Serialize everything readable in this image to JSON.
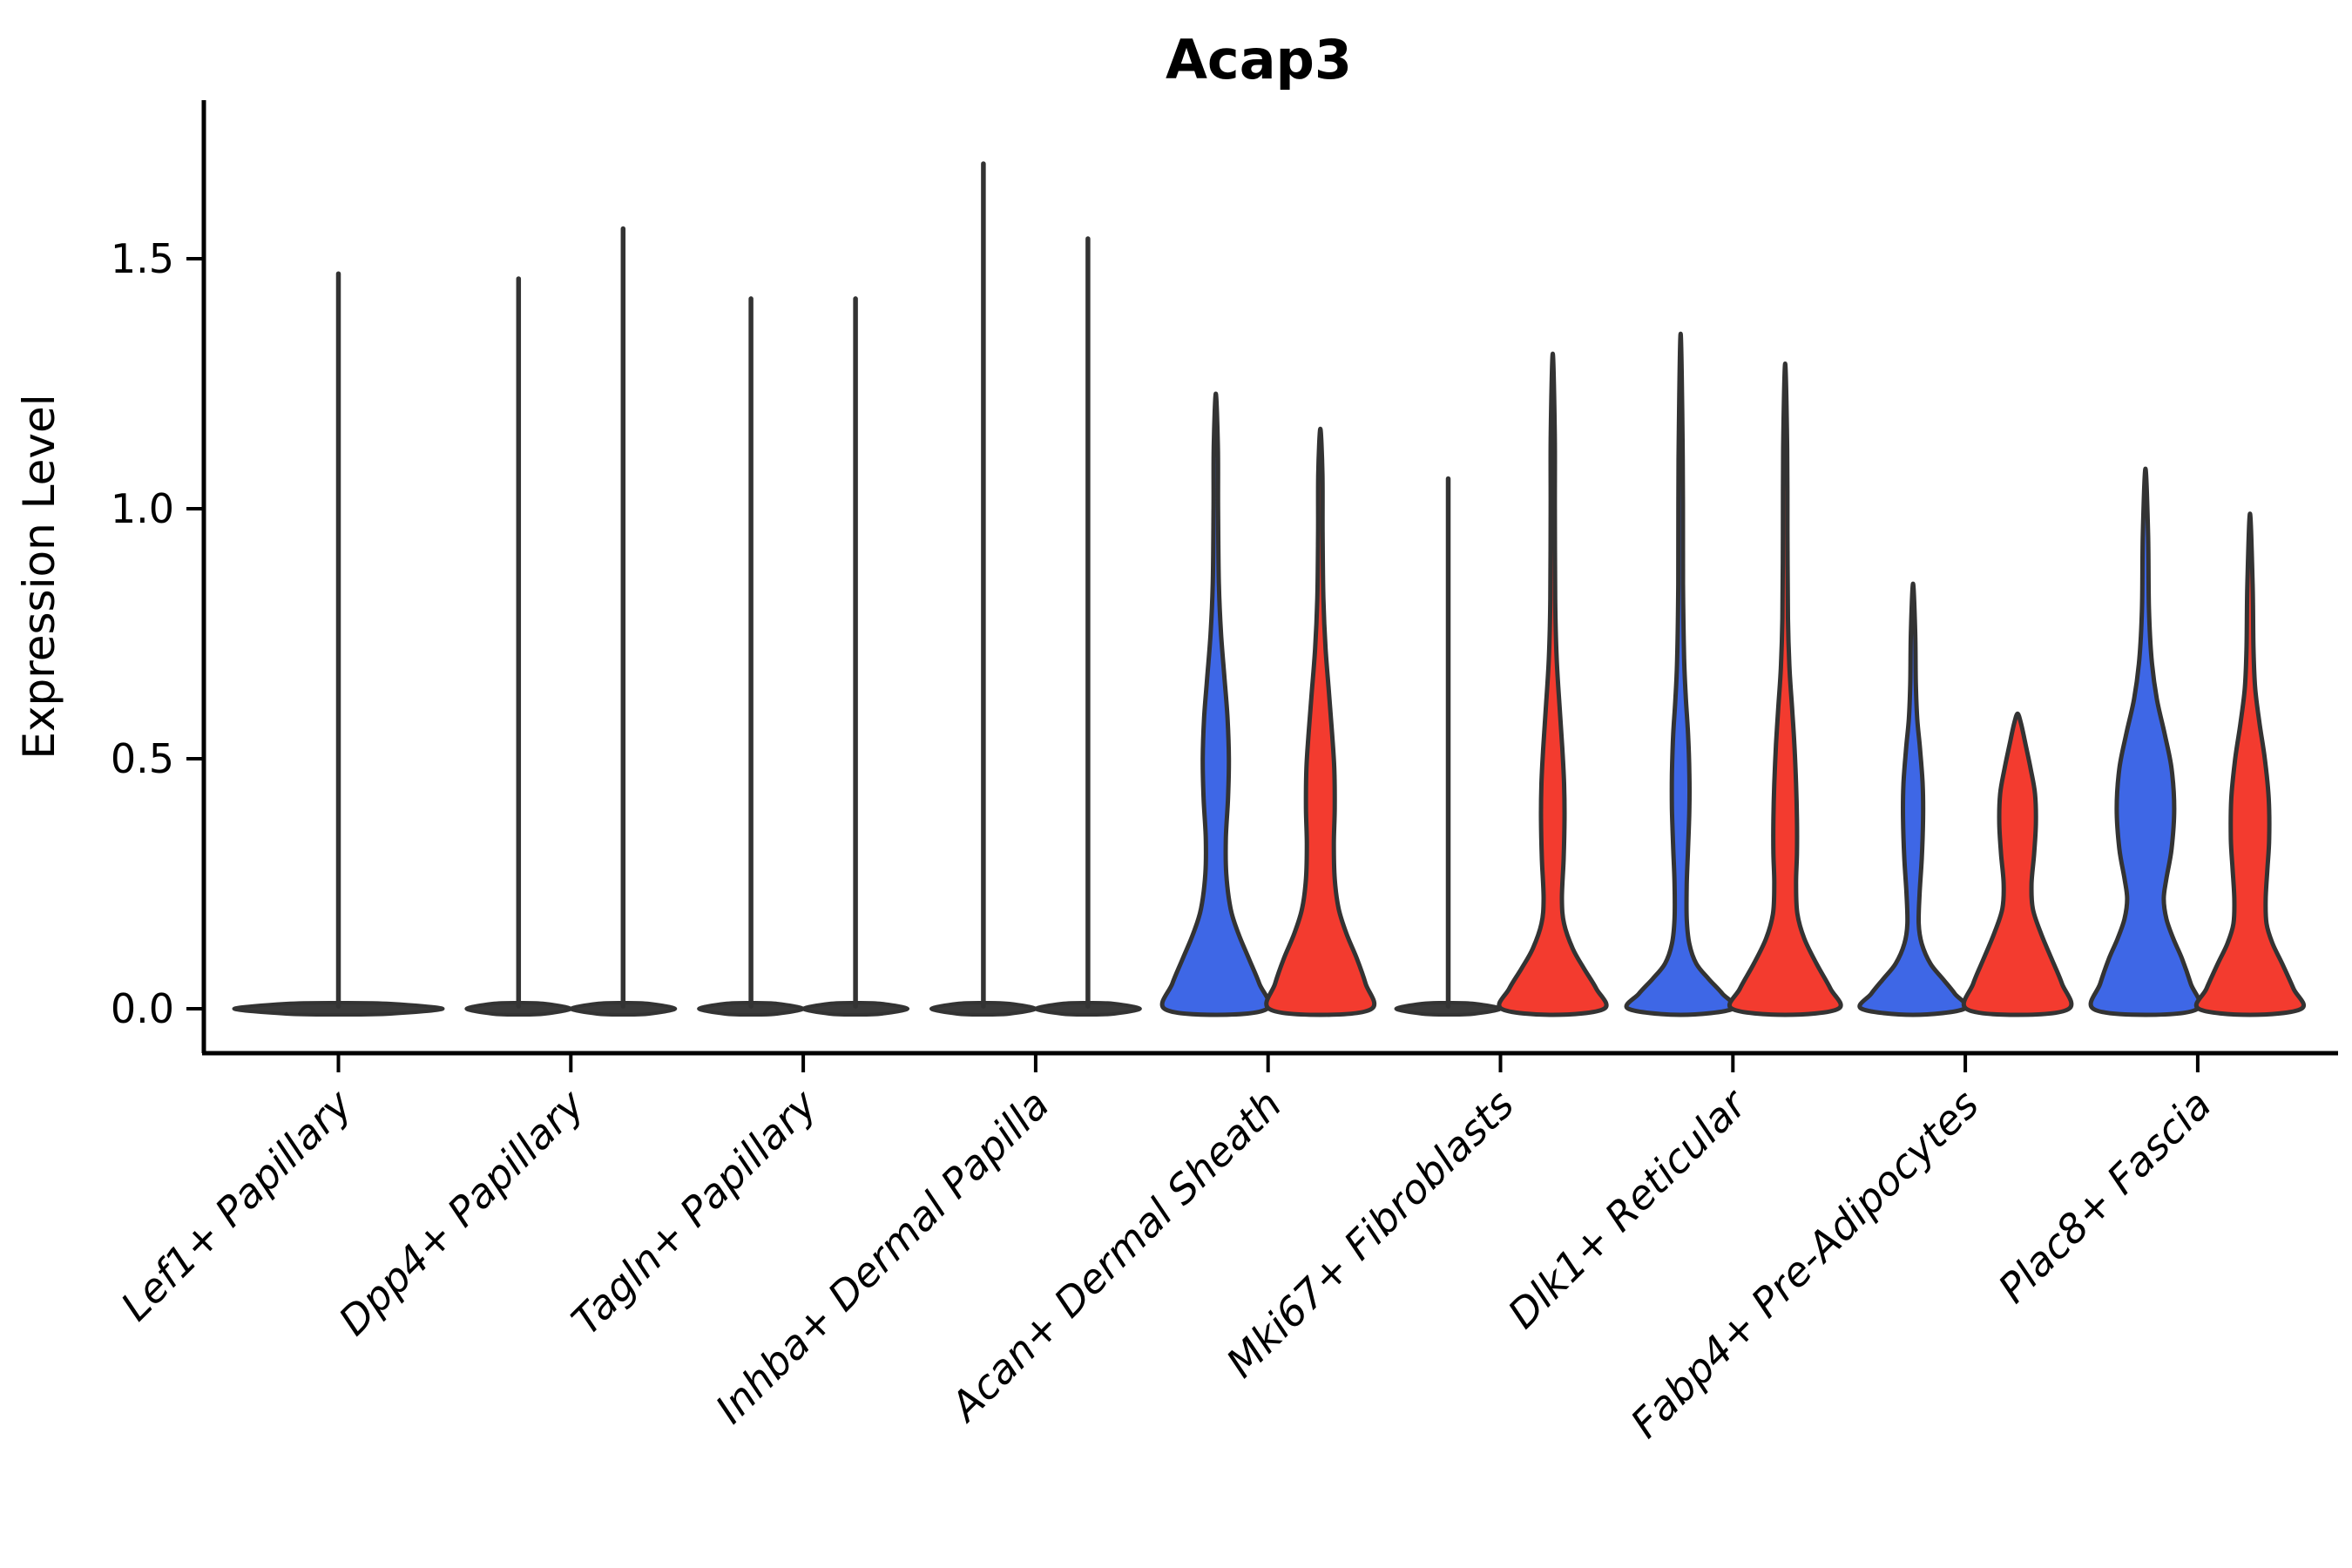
{
  "chart_data": {
    "type": "violin",
    "title": "Acap3",
    "ylabel": "Expression Level",
    "yticks": [
      0.0,
      0.5,
      1.0,
      1.5
    ],
    "ylim": [
      -0.09,
      1.82
    ],
    "grid": false,
    "legend": "none",
    "categories": [
      "Lef1+ Papillary",
      "Dpp4+ Papillary",
      "Tagln+ Papillary",
      "Inhba+ Dermal Papilla",
      "Acan+ Dermal Sheath",
      "Mki67+ Fibroblasts",
      "Dlk1+ Reticular",
      "Fabp4+ Pre-Adipocytes",
      "Plac8+ Fascia"
    ],
    "colors": {
      "blue_group": "#3E67E6",
      "red_group": "#F33B2F",
      "outline": "#333333",
      "flat_violin_fill": "#3A3A3A"
    },
    "series_note": "each category shows a left (blue) and right (red) violin; flat-spike violins are near-zero distributions with a single thin max spike",
    "violins": [
      {
        "category_index": 0,
        "group": "single",
        "style": "flat-spike",
        "offset": 0,
        "base_halfwidth": 120,
        "max_value": 1.47
      },
      {
        "category_index": 1,
        "group": "blue",
        "style": "flat-spike",
        "offset": -60,
        "base_halfwidth": 60,
        "max_value": 1.46
      },
      {
        "category_index": 1,
        "group": "red",
        "style": "flat-spike",
        "offset": 60,
        "base_halfwidth": 60,
        "max_value": 1.56
      },
      {
        "category_index": 2,
        "group": "blue",
        "style": "flat-spike",
        "offset": -60,
        "base_halfwidth": 60,
        "max_value": 1.42
      },
      {
        "category_index": 2,
        "group": "red",
        "style": "flat-spike",
        "offset": 60,
        "base_halfwidth": 60,
        "max_value": 1.42
      },
      {
        "category_index": 3,
        "group": "blue",
        "style": "flat-spike",
        "offset": -60,
        "base_halfwidth": 60,
        "max_value": 1.69
      },
      {
        "category_index": 3,
        "group": "red",
        "style": "flat-spike",
        "offset": 60,
        "base_halfwidth": 60,
        "max_value": 1.54
      },
      {
        "category_index": 4,
        "group": "blue",
        "style": "body",
        "offset": -60,
        "max_value": 1.23,
        "profile": [
          [
            0,
            59
          ],
          [
            0.05,
            50
          ],
          [
            0.1,
            38
          ],
          [
            0.15,
            26
          ],
          [
            0.2,
            17
          ],
          [
            0.27,
            12
          ],
          [
            0.34,
            11.5
          ],
          [
            0.42,
            14
          ],
          [
            0.5,
            15
          ],
          [
            0.58,
            13.5
          ],
          [
            0.66,
            10
          ],
          [
            0.75,
            6
          ],
          [
            0.85,
            3.5
          ],
          [
            1.0,
            2.6
          ],
          [
            1.12,
            2.4
          ],
          [
            1.23,
            0
          ]
        ]
      },
      {
        "category_index": 4,
        "group": "red",
        "style": "body",
        "offset": 60,
        "max_value": 1.16,
        "profile": [
          [
            0,
            59
          ],
          [
            0.05,
            52
          ],
          [
            0.1,
            42
          ],
          [
            0.15,
            30
          ],
          [
            0.2,
            21
          ],
          [
            0.26,
            16.5
          ],
          [
            0.33,
            15.5
          ],
          [
            0.4,
            16.5
          ],
          [
            0.48,
            16
          ],
          [
            0.55,
            13.5
          ],
          [
            0.63,
            10
          ],
          [
            0.72,
            6
          ],
          [
            0.82,
            3.5
          ],
          [
            0.95,
            2.6
          ],
          [
            1.07,
            2.4
          ],
          [
            1.16,
            0
          ]
        ]
      },
      {
        "category_index": 5,
        "group": "blue",
        "style": "flat-spike",
        "offset": -60,
        "base_halfwidth": 60,
        "max_value": 1.06
      },
      {
        "category_index": 5,
        "group": "red",
        "style": "body",
        "offset": 60,
        "max_value": 1.31,
        "profile": [
          [
            0,
            59
          ],
          [
            0.04,
            50
          ],
          [
            0.08,
            36
          ],
          [
            0.12,
            23
          ],
          [
            0.17,
            13
          ],
          [
            0.22,
            10.5
          ],
          [
            0.3,
            12.5
          ],
          [
            0.38,
            13.5
          ],
          [
            0.45,
            13
          ],
          [
            0.52,
            11
          ],
          [
            0.6,
            8
          ],
          [
            0.7,
            4.5
          ],
          [
            0.82,
            2.8
          ],
          [
            1.0,
            2.4
          ],
          [
            1.15,
            2.3
          ],
          [
            1.31,
            0
          ]
        ]
      },
      {
        "category_index": 6,
        "group": "blue",
        "style": "body",
        "offset": -60,
        "max_value": 1.35,
        "profile": [
          [
            0,
            60
          ],
          [
            0.03,
            48
          ],
          [
            0.06,
            32
          ],
          [
            0.09,
            18
          ],
          [
            0.13,
            10
          ],
          [
            0.18,
            7
          ],
          [
            0.25,
            7
          ],
          [
            0.32,
            8.5
          ],
          [
            0.4,
            10
          ],
          [
            0.47,
            10
          ],
          [
            0.55,
            8.5
          ],
          [
            0.62,
            6
          ],
          [
            0.7,
            4
          ],
          [
            0.85,
            2.7
          ],
          [
            1.1,
            2.4
          ],
          [
            1.35,
            0
          ]
        ]
      },
      {
        "category_index": 6,
        "group": "red",
        "style": "body",
        "offset": 60,
        "max_value": 1.29,
        "profile": [
          [
            0,
            61
          ],
          [
            0.04,
            52
          ],
          [
            0.09,
            36
          ],
          [
            0.14,
            22
          ],
          [
            0.19,
            14
          ],
          [
            0.25,
            12.5
          ],
          [
            0.31,
            13.5
          ],
          [
            0.38,
            13.5
          ],
          [
            0.45,
            12.5
          ],
          [
            0.53,
            10.5
          ],
          [
            0.6,
            8
          ],
          [
            0.68,
            5
          ],
          [
            0.78,
            3.2
          ],
          [
            0.95,
            2.6
          ],
          [
            1.12,
            2.3
          ],
          [
            1.29,
            0
          ]
        ]
      },
      {
        "category_index": 7,
        "group": "blue",
        "style": "body",
        "offset": -60,
        "max_value": 0.85,
        "profile": [
          [
            0,
            59
          ],
          [
            0.03,
            48
          ],
          [
            0.06,
            34
          ],
          [
            0.09,
            20
          ],
          [
            0.13,
            10
          ],
          [
            0.17,
            6.5
          ],
          [
            0.23,
            7.5
          ],
          [
            0.3,
            10
          ],
          [
            0.38,
            11.5
          ],
          [
            0.45,
            11
          ],
          [
            0.52,
            8
          ],
          [
            0.58,
            4.8
          ],
          [
            0.65,
            3.2
          ],
          [
            0.75,
            2.5
          ],
          [
            0.85,
            0
          ]
        ]
      },
      {
        "category_index": 7,
        "group": "red",
        "style": "body",
        "offset": 60,
        "max_value": 0.59,
        "profile": [
          [
            0,
            59
          ],
          [
            0.05,
            51
          ],
          [
            0.1,
            39
          ],
          [
            0.15,
            27
          ],
          [
            0.2,
            17.5
          ],
          [
            0.25,
            16
          ],
          [
            0.31,
            19
          ],
          [
            0.37,
            21
          ],
          [
            0.43,
            20
          ],
          [
            0.48,
            15
          ],
          [
            0.53,
            9
          ],
          [
            0.57,
            4
          ],
          [
            0.59,
            0
          ]
        ]
      },
      {
        "category_index": 8,
        "group": "blue",
        "style": "body",
        "offset": -60,
        "max_value": 1.08,
        "profile": [
          [
            0,
            60
          ],
          [
            0.05,
            52
          ],
          [
            0.1,
            42
          ],
          [
            0.14,
            32
          ],
          [
            0.18,
            24
          ],
          [
            0.22,
            21
          ],
          [
            0.26,
            24
          ],
          [
            0.32,
            30
          ],
          [
            0.4,
            33
          ],
          [
            0.48,
            30
          ],
          [
            0.55,
            22
          ],
          [
            0.62,
            13
          ],
          [
            0.7,
            7
          ],
          [
            0.8,
            4
          ],
          [
            0.95,
            3
          ],
          [
            1.08,
            0
          ]
        ]
      },
      {
        "category_index": 8,
        "group": "red",
        "style": "body",
        "offset": 60,
        "max_value": 0.99,
        "profile": [
          [
            0,
            59
          ],
          [
            0.04,
            50
          ],
          [
            0.09,
            37
          ],
          [
            0.13,
            26
          ],
          [
            0.17,
            19
          ],
          [
            0.22,
            18
          ],
          [
            0.28,
            20
          ],
          [
            0.34,
            22
          ],
          [
            0.42,
            21.5
          ],
          [
            0.5,
            17
          ],
          [
            0.57,
            11
          ],
          [
            0.64,
            6
          ],
          [
            0.72,
            4
          ],
          [
            0.85,
            3
          ],
          [
            0.99,
            0
          ]
        ]
      }
    ]
  }
}
